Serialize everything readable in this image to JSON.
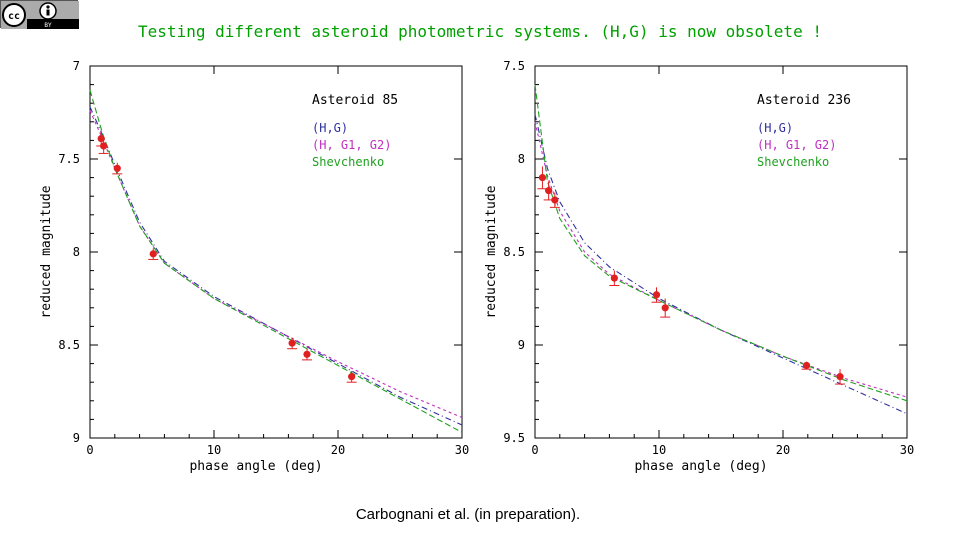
{
  "license_badge": {
    "text": "BY"
  },
  "title": "Testing different asteroid photometric systems. (H,G) is now obsolete !",
  "caption": "Carbognani et al. (in preparation).",
  "colors": {
    "hg": "#3030a0",
    "g1g2": "#c030c0",
    "shev": "#20a020",
    "points": "#e02020",
    "title": "#00a000"
  },
  "chart_data": [
    {
      "type": "scatter",
      "annotation": "Asteroid 85",
      "xlabel": "phase angle (deg)",
      "ylabel": "reduced magnitude",
      "xlim": [
        0,
        30
      ],
      "ylim": [
        7,
        9
      ],
      "y_inverted": true,
      "x_ticks": [
        "0",
        "10",
        "20",
        "30"
      ],
      "y_ticks": [
        "7",
        "7.5",
        "8",
        "8.5",
        "9"
      ],
      "legend": [
        "(H,G)",
        "(H, G1, G2)",
        "Shevchenko"
      ],
      "points": [
        {
          "x": 0.9,
          "y": 7.39,
          "err": 0.04
        },
        {
          "x": 1.1,
          "y": 7.43,
          "err": 0.04
        },
        {
          "x": 2.2,
          "y": 7.55,
          "err": 0.03
        },
        {
          "x": 5.1,
          "y": 8.01,
          "err": 0.03
        },
        {
          "x": 16.3,
          "y": 8.49,
          "err": 0.03
        },
        {
          "x": 17.5,
          "y": 8.55,
          "err": 0.03
        },
        {
          "x": 21.1,
          "y": 8.67,
          "err": 0.03
        }
      ],
      "series": [
        {
          "name": "(H,G)",
          "x": [
            0,
            1,
            2,
            4,
            6,
            10,
            15,
            20,
            25,
            30
          ],
          "values": [
            7.22,
            7.37,
            7.53,
            7.84,
            8.05,
            8.24,
            8.42,
            8.6,
            8.78,
            8.93
          ]
        },
        {
          "name": "(H, G1, G2)",
          "x": [
            0,
            1,
            2,
            4,
            6,
            10,
            15,
            20,
            25,
            30
          ],
          "values": [
            7.24,
            7.39,
            7.55,
            7.86,
            8.06,
            8.25,
            8.42,
            8.59,
            8.75,
            8.89
          ]
        },
        {
          "name": "Shevchenko",
          "x": [
            0,
            1,
            2,
            4,
            6,
            10,
            15,
            20,
            25,
            30
          ],
          "values": [
            7.13,
            7.36,
            7.55,
            7.86,
            8.06,
            8.25,
            8.43,
            8.61,
            8.79,
            8.97
          ]
        }
      ]
    },
    {
      "type": "scatter",
      "annotation": "Asteroid 236",
      "xlabel": "phase angle (deg)",
      "ylabel": "reduced magnitude",
      "xlim": [
        0,
        30
      ],
      "ylim": [
        7.5,
        9.5
      ],
      "y_inverted": true,
      "x_ticks": [
        "0",
        "10",
        "20",
        "30"
      ],
      "y_ticks": [
        "7.5",
        "8",
        "8.5",
        "9",
        "9.5"
      ],
      "legend": [
        "(H,G)",
        "(H, G1, G2)",
        "Shevchenko"
      ],
      "points": [
        {
          "x": 0.6,
          "y": 8.1,
          "err": 0.06
        },
        {
          "x": 1.1,
          "y": 8.17,
          "err": 0.05
        },
        {
          "x": 1.6,
          "y": 8.22,
          "err": 0.04
        },
        {
          "x": 6.4,
          "y": 8.64,
          "err": 0.04
        },
        {
          "x": 9.8,
          "y": 8.73,
          "err": 0.04
        },
        {
          "x": 10.5,
          "y": 8.8,
          "err": 0.05
        },
        {
          "x": 21.9,
          "y": 9.11,
          "err": 0.02
        },
        {
          "x": 24.6,
          "y": 9.17,
          "err": 0.04
        }
      ],
      "series": [
        {
          "name": "(H,G)",
          "x": [
            0,
            1,
            2,
            4,
            6,
            10,
            15,
            20,
            25,
            30
          ],
          "values": [
            7.76,
            8.05,
            8.23,
            8.45,
            8.58,
            8.75,
            8.92,
            9.07,
            9.22,
            9.37
          ]
        },
        {
          "name": "(H, G1, G2)",
          "x": [
            0,
            1,
            2,
            4,
            6,
            10,
            15,
            20,
            25,
            30
          ],
          "values": [
            7.8,
            8.09,
            8.28,
            8.5,
            8.62,
            8.76,
            8.92,
            9.06,
            9.18,
            9.28
          ]
        },
        {
          "name": "Shevchenko",
          "x": [
            0,
            1,
            2,
            4,
            6,
            10,
            15,
            20,
            25,
            30
          ],
          "values": [
            7.6,
            8.12,
            8.32,
            8.52,
            8.63,
            8.76,
            8.92,
            9.06,
            9.19,
            9.3
          ]
        }
      ]
    }
  ]
}
